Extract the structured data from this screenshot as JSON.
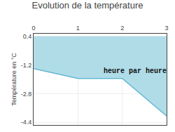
{
  "chart_data": {
    "type": "line",
    "title": "Evolution de la température",
    "ylabel": "Température en °C",
    "x": [
      0,
      1,
      2,
      3
    ],
    "values": [
      -1.4,
      -1.95,
      -1.95,
      -4.05
    ],
    "color": "#62b8d4",
    "fill_top": 0.4,
    "fill_color": "#b0dce8",
    "xlim": [
      0,
      3
    ],
    "ylim": [
      -4.55,
      0.55
    ],
    "xticks": [
      0,
      1,
      2,
      3
    ],
    "yticks": [
      0.4,
      -1.2,
      -2.8,
      -4.4
    ],
    "grid": true,
    "annotations": [
      {
        "text": "heure par heure",
        "x": 1.55,
        "y": -1.25
      }
    ]
  }
}
